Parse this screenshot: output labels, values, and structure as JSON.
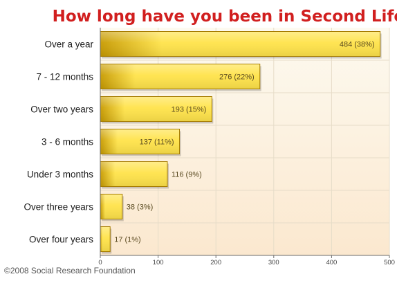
{
  "chart_data": {
    "type": "bar",
    "orientation": "horizontal",
    "title": "How long have you been in Second Life?",
    "categories": [
      "Over a year",
      "7 - 12 months",
      "Over two years",
      "3 - 6 months",
      "Under 3 months",
      "Over three years",
      "Over four years"
    ],
    "values": [
      484,
      276,
      193,
      137,
      116,
      38,
      17
    ],
    "data_labels": [
      "484 (38%)",
      "276 (22%)",
      "193 (15%)",
      "137 (11%)",
      "116 (9%)",
      "38 (3%)",
      "17 (1%)"
    ],
    "xlim": [
      0,
      500
    ],
    "x_ticks": [
      0,
      100,
      200,
      300,
      400,
      500
    ],
    "grid": true,
    "legend": "none"
  },
  "footer": {
    "credit": "©2008 Social Research Foundation"
  },
  "colors": {
    "title": "#d11f1f",
    "bar_light": "#ffe34a",
    "bar_dark": "#c79a00",
    "bar_edge": "#a67c00",
    "plot_bg_top": "#fdfaf0",
    "plot_bg_bottom": "#fbe8cf",
    "grid": "#e6dcc8",
    "axis": "#6b6b6b",
    "label_text": "#1a1a1a",
    "value_text": "#5a4a20"
  }
}
